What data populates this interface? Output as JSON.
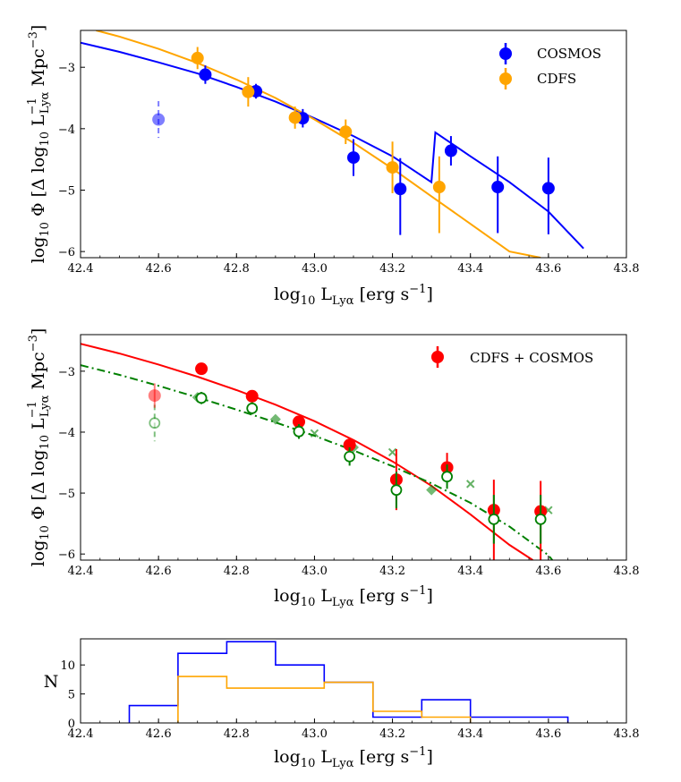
{
  "colors": {
    "cosmos": "#0000ff",
    "cdfs": "#ffa500",
    "combined": "#ff0000",
    "literature": "#008000"
  },
  "chart_data": [
    {
      "id": "panel1",
      "type": "scatter",
      "xlabel": "log10 LLyα [erg s−1]",
      "ylabel": "log10 Φ [Δ log10 L−1Lyα Mpc−3]",
      "xlim": [
        42.4,
        43.8
      ],
      "ylim": [
        -6.1,
        -2.4
      ],
      "x_ticks": [
        "42.4",
        "42.6",
        "42.8",
        "43.0",
        "43.2",
        "43.4",
        "43.6",
        "43.8"
      ],
      "y_ticks": [
        "−3",
        "−4",
        "−5",
        "−6"
      ],
      "legend": [
        "COSMOS",
        "CDFS"
      ],
      "series": [
        {
          "name": "COSMOS",
          "color": "#0000ff",
          "points": [
            {
              "x": 42.72,
              "y": -3.12,
              "err": 0.15
            },
            {
              "x": 42.85,
              "y": -3.39,
              "err": 0.12
            },
            {
              "x": 42.97,
              "y": -3.83,
              "err": 0.15
            },
            {
              "x": 43.1,
              "y": -4.47,
              "err": 0.3
            },
            {
              "x": 43.22,
              "y": -4.98,
              "err": 0.5,
              "errdown": 0.75
            },
            {
              "x": 43.35,
              "y": -4.36,
              "err": 0.24
            },
            {
              "x": 43.47,
              "y": -4.95,
              "err": 0.5,
              "errdown": 0.75
            },
            {
              "x": 43.6,
              "y": -4.97,
              "err": 0.5,
              "errdown": 0.75
            }
          ],
          "faint_point": {
            "x": 42.6,
            "y": -3.85,
            "err": 0.3
          }
        },
        {
          "name": "CDFS",
          "color": "#ffa500",
          "points": [
            {
              "x": 42.7,
              "y": -2.85,
              "err": 0.18
            },
            {
              "x": 42.83,
              "y": -3.4,
              "err": 0.24
            },
            {
              "x": 42.95,
              "y": -3.82,
              "err": 0.18
            },
            {
              "x": 43.08,
              "y": -4.05,
              "err": 0.2
            },
            {
              "x": 43.2,
              "y": -4.63,
              "err": 0.42
            },
            {
              "x": 43.32,
              "y": -4.95,
              "err": 0.5,
              "errdown": 0.75
            }
          ]
        }
      ],
      "fits": [
        {
          "name": "COSMOS fit",
          "color": "#0000ff",
          "x": [
            42.4,
            42.5,
            42.6,
            42.7,
            42.8,
            42.9,
            43.0,
            43.1,
            43.2,
            43.3,
            43.31,
            43.4,
            43.5,
            43.6,
            43.69
          ],
          "y": [
            -2.6,
            -2.75,
            -2.92,
            -3.1,
            -3.32,
            -3.56,
            -3.83,
            -4.12,
            -4.45,
            -4.87,
            -4.06,
            -4.45,
            -4.87,
            -5.35,
            -5.95
          ]
        },
        {
          "name": "CDFS fit",
          "color": "#ffa500",
          "x": [
            42.44,
            42.5,
            42.6,
            42.7,
            42.8,
            42.9,
            43.0,
            43.1,
            43.2,
            43.3,
            43.4,
            43.5,
            43.58
          ],
          "y": [
            -2.4,
            -2.5,
            -2.7,
            -2.93,
            -3.2,
            -3.5,
            -3.85,
            -4.23,
            -4.65,
            -5.1,
            -5.55,
            -6.0,
            -6.1
          ]
        }
      ]
    },
    {
      "id": "panel2",
      "type": "scatter",
      "xlabel": "log10 LLyα [erg s−1]",
      "ylabel": "log10 Φ [Δ log10 L−1Lyα Mpc−3]",
      "xlim": [
        42.4,
        43.8
      ],
      "ylim": [
        -6.1,
        -2.4
      ],
      "x_ticks": [
        "42.4",
        "42.6",
        "42.8",
        "43.0",
        "43.2",
        "43.4",
        "43.6",
        "43.8"
      ],
      "y_ticks": [
        "−3",
        "−4",
        "−5",
        "−6"
      ],
      "legend": [
        "CDFS + COSMOS"
      ],
      "series": [
        {
          "name": "CDFS + COSMOS",
          "color": "#ff0000",
          "points": [
            {
              "x": 42.71,
              "y": -2.96,
              "err": 0.05
            },
            {
              "x": 42.84,
              "y": -3.41,
              "err": 0.05
            },
            {
              "x": 42.96,
              "y": -3.83,
              "err": 0.08
            },
            {
              "x": 43.09,
              "y": -4.21,
              "err": 0.12
            },
            {
              "x": 43.21,
              "y": -4.78,
              "err": 0.5
            },
            {
              "x": 43.34,
              "y": -4.58,
              "err": 0.24
            },
            {
              "x": 43.46,
              "y": -5.28,
              "err": 0.5,
              "errdown": 0.82
            },
            {
              "x": 43.58,
              "y": -5.3,
              "err": 0.5,
              "errdown": 0.8
            }
          ],
          "faint_point": {
            "x": 42.59,
            "y": -3.4,
            "err": 0.2
          }
        },
        {
          "name": "open circles",
          "color": "#008000",
          "points": [
            {
              "x": 42.71,
              "y": -3.44,
              "err": 0.1
            },
            {
              "x": 42.84,
              "y": -3.61,
              "err": 0.1
            },
            {
              "x": 42.96,
              "y": -3.99,
              "err": 0.12
            },
            {
              "x": 43.09,
              "y": -4.4,
              "err": 0.15
            },
            {
              "x": 43.21,
              "y": -4.95,
              "err": 0.3
            },
            {
              "x": 43.34,
              "y": -4.73,
              "err": 0.2
            },
            {
              "x": 43.46,
              "y": -5.43,
              "err": 0.4
            },
            {
              "x": 43.58,
              "y": -5.43,
              "err": 0.4
            }
          ],
          "faint_point": {
            "x": 42.59,
            "y": -3.85,
            "err": 0.3
          }
        },
        {
          "name": "diamonds",
          "color": "#008000",
          "points": [
            {
              "x": 42.7,
              "y": -3.43
            },
            {
              "x": 42.9,
              "y": -3.79
            },
            {
              "x": 43.1,
              "y": -4.25
            },
            {
              "x": 43.3,
              "y": -4.95
            }
          ]
        },
        {
          "name": "crosses",
          "color": "#008000",
          "points": [
            {
              "x": 43.0,
              "y": -4.02
            },
            {
              "x": 43.2,
              "y": -4.33
            },
            {
              "x": 43.4,
              "y": -4.85
            },
            {
              "x": 43.6,
              "y": -5.28
            }
          ]
        }
      ],
      "fits": [
        {
          "name": "CDFS + COSMOS fit",
          "color": "#ff0000",
          "style": "solid",
          "x": [
            42.4,
            42.5,
            42.6,
            42.7,
            42.8,
            42.9,
            43.0,
            43.1,
            43.2,
            43.3,
            43.4,
            43.5,
            43.56
          ],
          "y": [
            -2.55,
            -2.71,
            -2.89,
            -3.09,
            -3.31,
            -3.55,
            -3.82,
            -4.13,
            -4.48,
            -4.88,
            -5.35,
            -5.85,
            -6.1
          ]
        },
        {
          "name": "literature fit",
          "color": "#008000",
          "style": "dashdot",
          "x": [
            42.4,
            42.5,
            42.6,
            42.7,
            42.8,
            42.9,
            43.0,
            43.1,
            43.2,
            43.3,
            43.4,
            43.5,
            43.6,
            43.61
          ],
          "y": [
            -2.9,
            -3.06,
            -3.24,
            -3.43,
            -3.63,
            -3.84,
            -4.06,
            -4.3,
            -4.56,
            -4.84,
            -5.16,
            -5.55,
            -6.02,
            -6.1
          ]
        }
      ]
    },
    {
      "id": "panel3",
      "type": "histogram",
      "xlabel": "log10 LLyα [erg s−1]",
      "ylabel": "N",
      "xlim": [
        42.4,
        43.8
      ],
      "ylim": [
        0,
        14.5
      ],
      "x_ticks": [
        "42.4",
        "42.6",
        "42.8",
        "43.0",
        "43.2",
        "43.4",
        "43.6",
        "43.8"
      ],
      "y_ticks": [
        "0",
        "5",
        "10"
      ],
      "series": [
        {
          "name": "COSMOS",
          "color": "#0000ff",
          "edges": [
            42.525,
            42.65,
            42.775,
            42.9,
            43.025,
            43.15,
            43.275,
            43.4,
            43.525,
            43.65
          ],
          "counts": [
            3,
            12,
            14,
            10,
            7,
            1,
            4,
            1,
            1
          ]
        },
        {
          "name": "CDFS",
          "color": "#ffa500",
          "edges": [
            42.65,
            42.775,
            42.9,
            43.025,
            43.15,
            43.275,
            43.4
          ],
          "counts": [
            8,
            6,
            6,
            7,
            2,
            1
          ]
        }
      ]
    }
  ]
}
